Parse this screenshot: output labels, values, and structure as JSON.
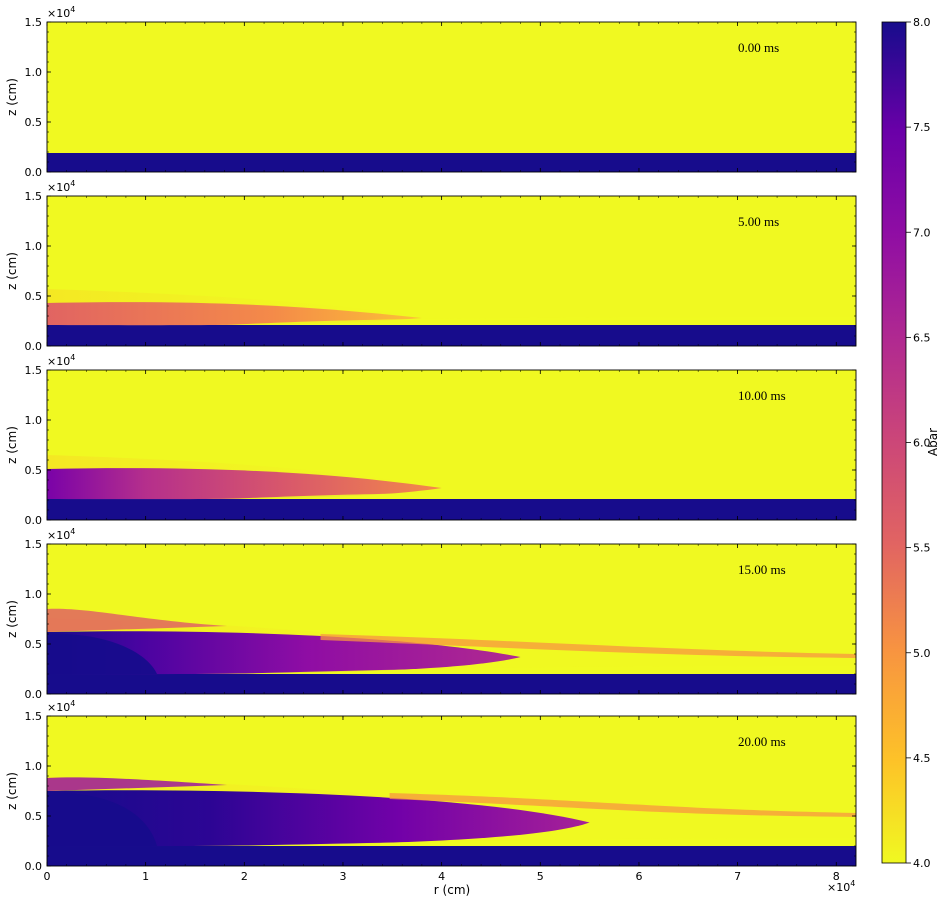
{
  "chart_data": {
    "type": "heatmap",
    "colormap": "plasma_r",
    "x_axis": {
      "label": "r  (cm)",
      "ticks": [
        "0",
        "1",
        "2",
        "3",
        "4",
        "5",
        "6",
        "7",
        "8"
      ],
      "multiplier": "×10",
      "multiplier_exp": "4",
      "range": [
        0,
        8.2
      ]
    },
    "y_axis": {
      "label": "z  (cm)",
      "ticks": [
        "0.0",
        "0.5",
        "1.0",
        "1.5"
      ],
      "multiplier": "×10",
      "multiplier_exp": "4",
      "range": [
        0,
        1.5
      ]
    },
    "colorbar": {
      "label": "Abar",
      "ticks": [
        "4.0",
        "4.5",
        "5.0",
        "5.5",
        "6.0",
        "6.5",
        "7.0",
        "7.5",
        "8.0"
      ],
      "range": [
        4.0,
        8.0
      ],
      "colors": {
        "high": "#170c8c",
        "mid": "#b12a90",
        "low": "#f0f921"
      }
    },
    "panels": [
      {
        "time": "0.00 ms",
        "base_layer_top": 0.19,
        "shell_top": 0.19,
        "front_r": 0.0,
        "wake_top": 0.0
      },
      {
        "time": "5.00 ms",
        "base_layer_top": 0.21,
        "shell_top": 0.43,
        "front_r": 3.8,
        "wake_top": 0.0
      },
      {
        "time": "10.00 ms",
        "base_layer_top": 0.21,
        "shell_top": 0.51,
        "front_r": 4.0,
        "wake_top": 0.0
      },
      {
        "time": "15.00 ms",
        "base_layer_top": 0.2,
        "shell_top": 0.62,
        "front_r": 4.8,
        "wake_top": 0.85
      },
      {
        "time": "20.00 ms",
        "base_layer_top": 0.2,
        "shell_top": 0.75,
        "front_r": 5.5,
        "wake_top": 0.88
      }
    ]
  }
}
